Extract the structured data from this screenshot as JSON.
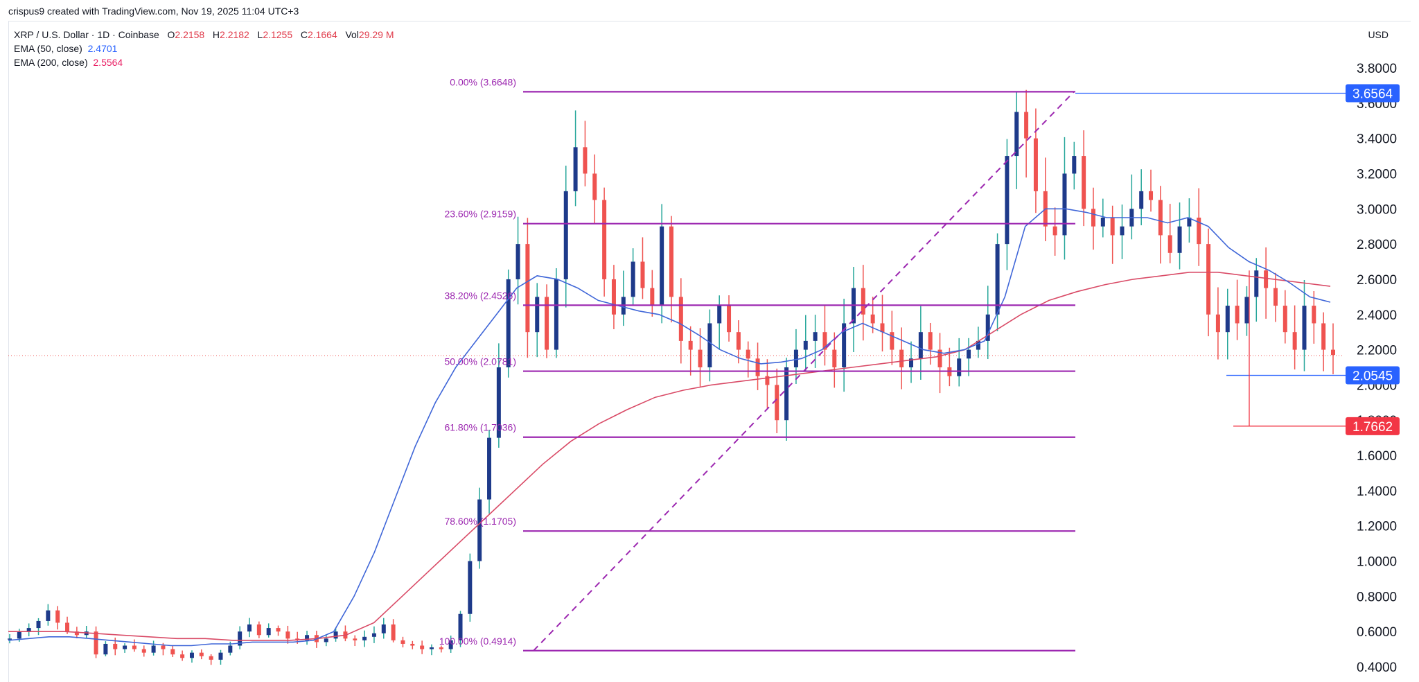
{
  "credit": "crispus9 created with TradingView.com, Nov 19, 2025 11:04 UTC+3",
  "legend": {
    "symbol": "XRP / U.S. Dollar · 1D · Coinbase",
    "o_label": "O",
    "o_val": "2.2158",
    "h_label": "H",
    "h_val": "2.2182",
    "l_label": "L",
    "l_val": "2.1255",
    "c_label": "C",
    "c_val": "2.1664",
    "vol_label": "Vol",
    "vol_val": "29.29 M",
    "ema50_label": "EMA (50, close)",
    "ema50_val": "2.4701",
    "ema200_label": "EMA (200, close)",
    "ema200_val": "2.5564"
  },
  "currency": "USD",
  "colors": {
    "up": "#26a69a",
    "down": "#ef5350",
    "body_up": "#1e3a8a",
    "ema50": "#3f66d8",
    "ema200": "#d94a66",
    "fib": "#9c27b0",
    "tag_blue": "#2962ff",
    "tag_red": "#f23645"
  },
  "chart_data": {
    "type": "candlestick",
    "title": "XRP / U.S. Dollar · 1D · Coinbase",
    "ylim": [
      0.4,
      3.9
    ],
    "y_ticks": [
      "3.8000",
      "3.6000",
      "3.4000",
      "3.2000",
      "3.0000",
      "2.8000",
      "2.6000",
      "2.4000",
      "2.2000",
      "2.0000",
      "1.8000",
      "1.6000",
      "1.4000",
      "1.2000",
      "1.0000",
      "0.8000",
      "0.6000",
      "0.4000"
    ],
    "fib_levels": [
      {
        "label": "0.00% (3.6648)",
        "value": 3.6648
      },
      {
        "label": "23.60% (2.9159)",
        "value": 2.9159
      },
      {
        "label": "38.20% (2.4526)",
        "value": 2.4526
      },
      {
        "label": "50.00% (2.0781)",
        "value": 2.0781
      },
      {
        "label": "61.80% (1.7036)",
        "value": 1.7036
      },
      {
        "label": "78.60% (1.1705)",
        "value": 1.1705
      },
      {
        "label": "100.00% (0.4914)",
        "value": 0.4914
      }
    ],
    "price_tags": [
      {
        "label": "3.6564",
        "value": 3.6564,
        "color": "blue"
      },
      {
        "label": "2.0545",
        "value": 2.0545,
        "color": "blue"
      },
      {
        "label": "1.7662",
        "value": 1.7662,
        "color": "red"
      }
    ],
    "last_price": 2.1664,
    "close_path": [
      0.56,
      0.6,
      0.62,
      0.66,
      0.72,
      0.65,
      0.6,
      0.58,
      0.6,
      0.47,
      0.53,
      0.5,
      0.52,
      0.5,
      0.48,
      0.52,
      0.5,
      0.47,
      0.45,
      0.48,
      0.46,
      0.44,
      0.48,
      0.52,
      0.6,
      0.64,
      0.58,
      0.62,
      0.6,
      0.56,
      0.55,
      0.58,
      0.54,
      0.56,
      0.6,
      0.56,
      0.55,
      0.57,
      0.59,
      0.64,
      0.55,
      0.53,
      0.52,
      0.5,
      0.51,
      0.5,
      0.55,
      0.7,
      1.0,
      1.35,
      1.7,
      2.1,
      2.6,
      2.8,
      2.3,
      2.5,
      2.2,
      2.6,
      3.1,
      3.35,
      3.2,
      3.05,
      2.6,
      2.4,
      2.5,
      2.7,
      2.55,
      2.45,
      2.9,
      2.5,
      2.25,
      2.2,
      2.1,
      2.35,
      2.45,
      2.3,
      2.2,
      2.15,
      2.05,
      2.0,
      1.8,
      2.1,
      2.2,
      2.25,
      2.3,
      2.2,
      2.1,
      2.35,
      2.55,
      2.4,
      2.35,
      2.3,
      2.2,
      2.1,
      2.15,
      2.3,
      2.2,
      2.1,
      2.05,
      2.15,
      2.2,
      2.25,
      2.4,
      2.8,
      3.3,
      3.55,
      3.4,
      3.1,
      2.9,
      2.85,
      3.2,
      3.3,
      3.0,
      2.9,
      2.95,
      2.85,
      2.9,
      3.0,
      3.1,
      3.05,
      2.85,
      2.75,
      2.9,
      2.95,
      2.8,
      2.4,
      2.3,
      2.45,
      2.35,
      2.5,
      2.65,
      2.55,
      2.45,
      2.3,
      2.2,
      2.45,
      2.35,
      2.2,
      2.17
    ],
    "ema50_path": [
      0.55,
      0.56,
      0.57,
      0.57,
      0.56,
      0.55,
      0.54,
      0.53,
      0.52,
      0.52,
      0.53,
      0.53,
      0.54,
      0.54,
      0.54,
      0.55,
      0.6,
      0.8,
      1.05,
      1.35,
      1.65,
      1.9,
      2.1,
      2.25,
      2.4,
      2.55,
      2.62,
      2.6,
      2.55,
      2.48,
      2.45,
      2.42,
      2.4,
      2.35,
      2.28,
      2.2,
      2.15,
      2.12,
      2.13,
      2.15,
      2.2,
      2.3,
      2.35,
      2.3,
      2.25,
      2.2,
      2.18,
      2.2,
      2.25,
      2.5,
      2.9,
      3.0,
      3.0,
      2.98,
      2.95,
      2.95,
      2.95,
      2.92,
      2.95,
      2.9,
      2.78,
      2.7,
      2.65,
      2.58,
      2.5,
      2.47
    ],
    "ema200_path": [
      0.6,
      0.6,
      0.6,
      0.59,
      0.58,
      0.57,
      0.56,
      0.56,
      0.55,
      0.55,
      0.55,
      0.56,
      0.58,
      0.65,
      0.8,
      0.95,
      1.1,
      1.25,
      1.4,
      1.55,
      1.68,
      1.78,
      1.86,
      1.93,
      1.97,
      2.0,
      2.02,
      2.04,
      2.06,
      2.08,
      2.1,
      2.12,
      2.14,
      2.16,
      2.2,
      2.3,
      2.4,
      2.48,
      2.53,
      2.57,
      2.6,
      2.62,
      2.64,
      2.64,
      2.62,
      2.6,
      2.58,
      2.56
    ]
  }
}
